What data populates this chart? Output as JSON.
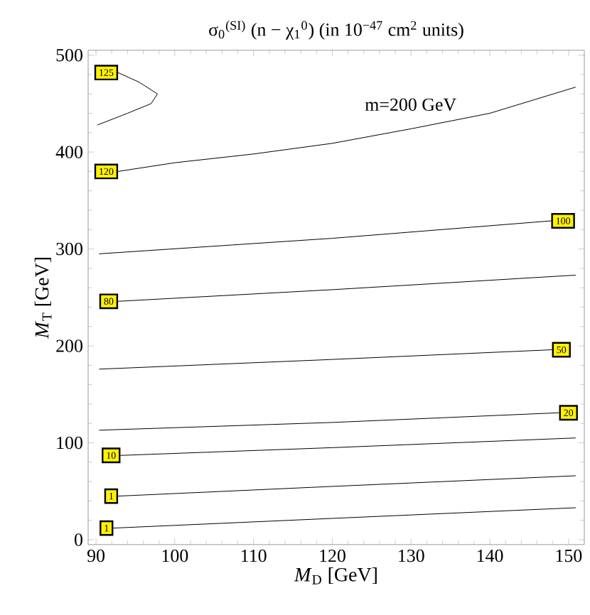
{
  "chart_data": {
    "type": "line",
    "title": "σ$_{0}$$^{(SI)}$ (n − χ$_{1}$$^{0}$) (in 10$^{−47}$ cm$^{2}$ units)",
    "xlabel": "*M*$_{D}$ [GeV]",
    "ylabel": "*M*$_{T}$ [GeV]",
    "xlim": [
      89,
      152
    ],
    "ylim": [
      -5,
      505
    ],
    "xticks": [
      90,
      100,
      110,
      120,
      130,
      140,
      150
    ],
    "yticks": [
      0,
      100,
      200,
      300,
      400,
      500
    ],
    "grid": false,
    "legend": false,
    "marker": "none",
    "line_style": "solid",
    "annotations": [
      "m=200 GeV"
    ],
    "series": [
      {
        "name": "125",
        "color": "#000000",
        "x": [
          92.8,
          95.5,
          97.8,
          97,
          94,
          90.2
        ],
        "values": [
          482,
          472,
          460,
          450,
          440,
          428
        ]
      },
      {
        "name": "120",
        "color": "#000000",
        "x": [
          92.8,
          100,
          110,
          120,
          130,
          140,
          150.9
        ],
        "values": [
          380,
          389,
          398,
          409,
          424,
          440,
          467
        ]
      },
      {
        "name": "100",
        "color": "#000000",
        "x": [
          147.8,
          120,
          90.4
        ],
        "values": [
          329,
          311,
          295
        ]
      },
      {
        "name": "80",
        "color": "#000000",
        "x": [
          92.8,
          120,
          150.9
        ],
        "values": [
          246,
          258,
          273
        ]
      },
      {
        "name": "50",
        "color": "#000000",
        "x": [
          147.9,
          120,
          90.4
        ],
        "values": [
          196,
          186,
          176
        ]
      },
      {
        "name": "20",
        "color": "#000000",
        "x": [
          148.8,
          120,
          90.4
        ],
        "values": [
          131,
          121,
          113
        ]
      },
      {
        "name": "10",
        "color": "#000000",
        "x": [
          93.1,
          120,
          150.9
        ],
        "values": [
          87,
          95,
          105
        ]
      },
      {
        "name": "1",
        "color": "#000000",
        "x": [
          92.8,
          120,
          150.9
        ],
        "values": [
          45,
          55,
          66
        ]
      },
      {
        "name": "1",
        "color": "#000000",
        "x": [
          92.2,
          120,
          150.9
        ],
        "values": [
          12,
          22,
          33
        ]
      }
    ]
  }
}
